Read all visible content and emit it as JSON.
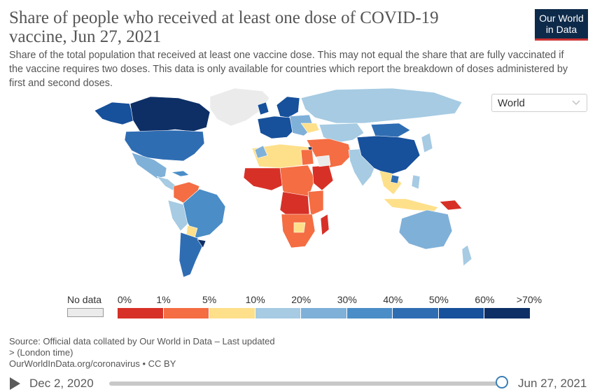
{
  "header": {
    "title": "Share of people who received at least one dose of COVID-19 vaccine, Jun 27, 2021",
    "subtitle": "Share of the total population that received at least one vaccine dose. This may not equal the share that are fully vaccinated if the vaccine requires two doses. This data is only available for countries which report the breakdown of doses administered by first and second doses."
  },
  "logo": {
    "line1": "Our World",
    "line2": "in Data"
  },
  "entity_select": {
    "value": "World"
  },
  "legend": {
    "no_data_label": "No data",
    "no_data_color": "#ebebeb",
    "ticks": [
      "0%",
      "1%",
      "5%",
      "10%",
      "20%",
      "30%",
      "40%",
      "50%",
      "60%",
      ">70%"
    ],
    "colors": [
      "#d73027",
      "#f46d43",
      "#fee08b",
      "#a6cbe3",
      "#7fb0d8",
      "#4a8dc7",
      "#2f6db3",
      "#17509b",
      "#0d2f66"
    ]
  },
  "footer": {
    "source": "Source: Official data collated by Our World in Data – Last updated",
    "updated": "> (London time)",
    "url": "OurWorldInData.org/coronavirus • CC BY"
  },
  "timeline": {
    "start": "Dec 2, 2020",
    "end": "Jun 27, 2021",
    "position": 1.0
  }
}
